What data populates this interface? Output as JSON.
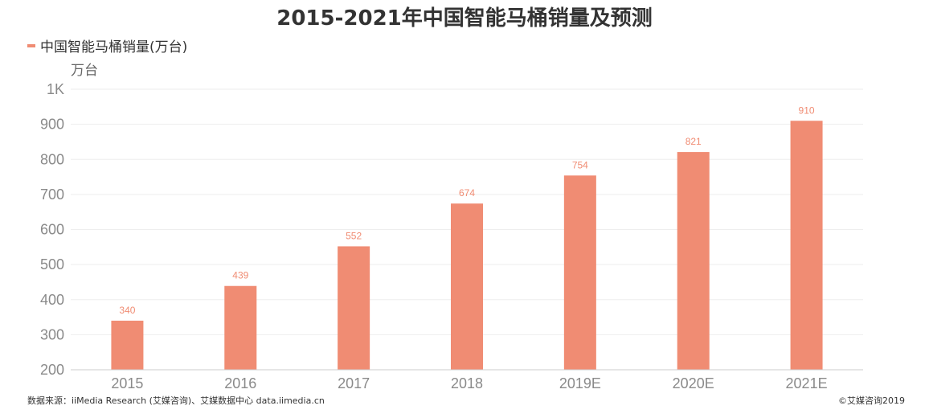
{
  "title": "2015-2021年中国智能马桶销量及预测",
  "legend": {
    "label": "中国智能马桶销量(万台)"
  },
  "footer": {
    "source": "数据来源：iiMedia Research (艾媒咨询)、艾媒数据中心 data.iimedia.cn",
    "copyright": "©艾媒咨询2019"
  },
  "colors": {
    "bar": "#f08c73",
    "grid": "#eeeeee",
    "axis": "#cccccc",
    "tick": "#8a8a8a"
  },
  "chart_data": {
    "type": "bar",
    "title": "2015-2021年中国智能马桶销量及预测",
    "ylabel": "万台",
    "categories": [
      "2015",
      "2016",
      "2017",
      "2018",
      "2019E",
      "2020E",
      "2021E"
    ],
    "series": [
      {
        "name": "中国智能马桶销量(万台)",
        "values": [
          340,
          439,
          552,
          674,
          754,
          821,
          910
        ]
      }
    ],
    "ylim": [
      200,
      1000
    ],
    "yticks": [
      200,
      300,
      400,
      500,
      600,
      700,
      800,
      900,
      1000
    ],
    "ytick_labels": [
      "200",
      "300",
      "400",
      "500",
      "600",
      "700",
      "800",
      "900",
      "1K"
    ],
    "grid": true,
    "legend_position": "top-left"
  }
}
